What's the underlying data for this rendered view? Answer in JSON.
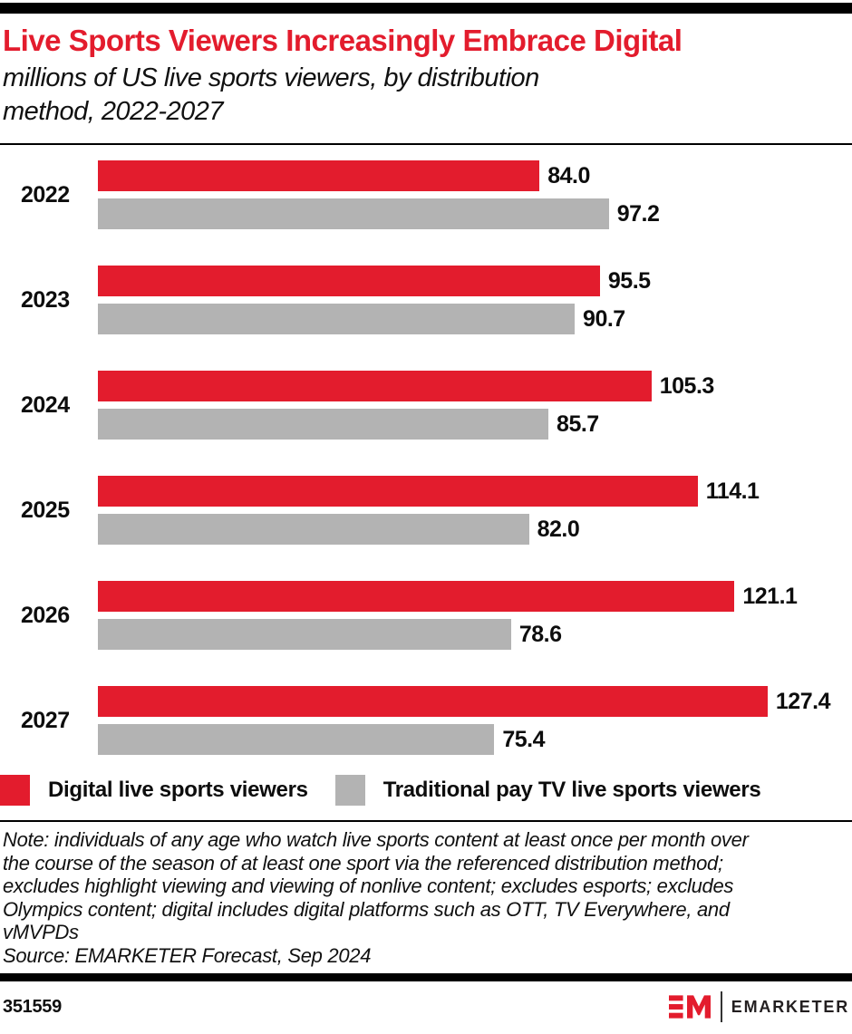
{
  "header": {
    "title": "Live Sports Viewers Increasingly Embrace Digital",
    "subtitle_lines": [
      "millions of US live sports viewers, by distribution",
      "method, 2022-2027"
    ]
  },
  "chart_data": {
    "type": "bar",
    "orientation": "horizontal",
    "title": "Live Sports Viewers Increasingly Embrace Digital",
    "subtitle": "millions of US live sports viewers, by distribution method, 2022-2027",
    "unit": "millions",
    "categories": [
      "2022",
      "2023",
      "2024",
      "2025",
      "2026",
      "2027"
    ],
    "series": [
      {
        "name": "Digital live sports viewers",
        "color": "#e31c2d",
        "values": [
          84.0,
          95.5,
          105.3,
          114.1,
          121.1,
          127.4
        ]
      },
      {
        "name": "Traditional pay TV live sports viewers",
        "color": "#b3b3b3",
        "values": [
          97.2,
          90.7,
          85.7,
          82.0,
          78.6,
          75.4
        ]
      }
    ],
    "xlim": [
      0,
      130
    ],
    "grid": false,
    "data_labels": true,
    "legend_position": "bottom"
  },
  "legend": {
    "items": [
      {
        "label": "Digital live sports viewers",
        "color": "#e31c2d"
      },
      {
        "label": "Traditional pay TV live sports viewers",
        "color": "#b3b3b3"
      }
    ]
  },
  "note": {
    "lines": [
      "Note: individuals of any age who watch live sports content at least once per month over",
      "the course of the season of at least one sport via the referenced distribution method;",
      "excludes highlight viewing and viewing of nonlive content; excludes esports; excludes",
      "Olympics content; digital includes digital platforms such as OTT, TV Everywhere, and",
      "vMVPDs"
    ],
    "source": "Source: EMARKETER Forecast, Sep 2024"
  },
  "footer": {
    "chart_id": "351559",
    "brand_name": "EMARKETER",
    "logo_mark": "EM",
    "logo_color": "#e31c2d"
  }
}
